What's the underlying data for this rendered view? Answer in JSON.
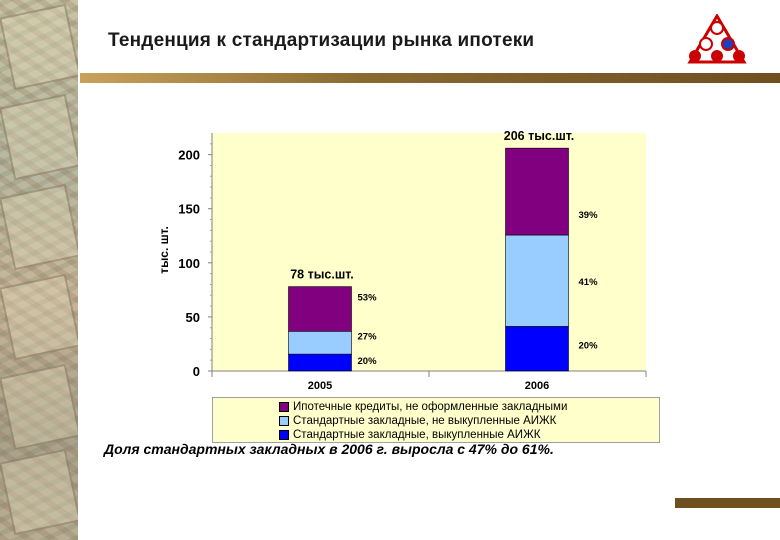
{
  "slide": {
    "title": "Тенденция к стандартизации рынка ипотеки",
    "caption": "Доля стандартных закладных в 2006 г. выросла с  47% до 61%."
  },
  "colors": {
    "title_bar": "#8a6a30",
    "plot_bg": "#ffffcc",
    "series": [
      "#800080",
      "#99ccff",
      "#0000ff"
    ]
  },
  "chart_data": {
    "type": "bar",
    "stacked": true,
    "categories": [
      "2005",
      "2006"
    ],
    "ylabel": "тыс. шт.",
    "ylim": [
      0,
      220
    ],
    "yticks": [
      0,
      50,
      100,
      150,
      200
    ],
    "totals": [
      78,
      206
    ],
    "total_labels": [
      "78 тыс.шт.",
      "206 тыс.шт."
    ],
    "series": [
      {
        "name": "Стандартные закладные, выкупленные АИЖК",
        "values": [
          15.6,
          41.2
        ],
        "labels": [
          "20%",
          "20%"
        ]
      },
      {
        "name": "Стандартные закладные, не выкупленные АИЖК",
        "values": [
          21.1,
          84.5
        ],
        "labels": [
          "27%",
          "41%"
        ]
      },
      {
        "name": "Ипотечные кредиты, не оформленные закладными",
        "values": [
          41.3,
          80.3
        ],
        "labels": [
          "53%",
          "39%"
        ]
      }
    ],
    "legend_order": [
      "Ипотечные кредиты, не оформленные закладными",
      "Стандартные закладные, не выкупленные АИЖК",
      "Стандартные закладные, выкупленные АИЖК"
    ],
    "legend_position": "bottom"
  }
}
